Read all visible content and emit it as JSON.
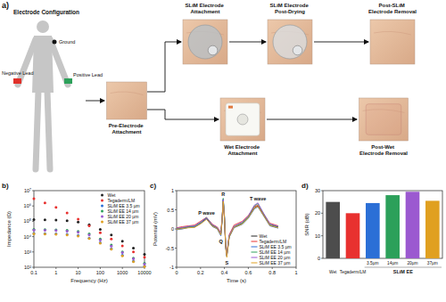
{
  "diagram": {
    "label": "a)",
    "title": "Electrode Configuration",
    "leads": {
      "ground": "Ground",
      "positive": "Positive Lead",
      "negative": "Negative Lead"
    },
    "photos": {
      "pre": "Pre-Electrode Attachment",
      "slim_attach": "SLiM Electrode Attachment",
      "slim_dry": "SLiM Electrode Post-Drying",
      "slim_removed": "Post-SLiM Electrode Removal",
      "wet_attach": "Wet Electrode Attachment",
      "wet_removed": "Post-Wet Electrode Removal"
    }
  },
  "chart_data": [
    {
      "type": "scatter",
      "title": "b)",
      "x_label": "Frequency (Hz)",
      "y_label": "Impedance (Ω)",
      "log": true,
      "marker": "circle",
      "legend": "upper right",
      "x": [
        0.1,
        0.316,
        1,
        3.16,
        10,
        31.6,
        100,
        316,
        1000,
        3160,
        10000
      ],
      "xlim": [
        0.1,
        10000
      ],
      "xticks": [
        0.1,
        1,
        10,
        100,
        1000,
        10000
      ],
      "ylim": [
        100,
        10000000
      ],
      "yticks": [
        {
          "value": 100,
          "label": "10²"
        },
        {
          "value": 1000,
          "label": "10³"
        },
        {
          "value": 10000,
          "label": "10⁴"
        },
        {
          "value": 100000,
          "label": "10⁵"
        },
        {
          "value": 1000000,
          "label": "10⁶"
        },
        {
          "value": 10000000,
          "label": "10⁷"
        }
      ],
      "series": [
        {
          "name": "Wet",
          "color": "#222222",
          "values": [
            130000,
            125000,
            120000,
            110000,
            90000,
            60000,
            30000,
            13000,
            5000,
            1800,
            700
          ]
        },
        {
          "name": "Tegaderm/LM",
          "color": "#e8312f",
          "values": [
            3000000,
            1600000,
            800000,
            350000,
            140000,
            50000,
            18000,
            7000,
            2500,
            1000,
            450
          ]
        },
        {
          "name": "SLiM EE 3.5 µm",
          "color": "#2b6fd6",
          "values": [
            16000,
            15500,
            15000,
            14000,
            12000,
            8000,
            4000,
            1600,
            600,
            250,
            120
          ]
        },
        {
          "name": "SLiM EE 14 µm",
          "color": "#2ca05a",
          "values": [
            30000,
            29000,
            28000,
            26000,
            22000,
            15000,
            7000,
            2800,
            1000,
            400,
            180
          ]
        },
        {
          "name": "SLiM EE 20 µm",
          "color": "#9b59d0",
          "values": [
            27000,
            26000,
            25000,
            23000,
            19000,
            13000,
            6000,
            2400,
            900,
            360,
            160
          ]
        },
        {
          "name": "SLiM EE 37 µm",
          "color": "#e0a020",
          "values": [
            15000,
            14500,
            14000,
            13000,
            11000,
            7500,
            3700,
            1500,
            550,
            230,
            110
          ]
        }
      ]
    },
    {
      "type": "line",
      "title": "c)",
      "x_label": "Time (s)",
      "y_label": "Potential (mV)",
      "legend": "lower right",
      "x": [
        0,
        0.05,
        0.1,
        0.15,
        0.2,
        0.25,
        0.3,
        0.34,
        0.37,
        0.38,
        0.39,
        0.4,
        0.41,
        0.42,
        0.44,
        0.48,
        0.55,
        0.6,
        0.65,
        0.68,
        0.72,
        0.78,
        0.85
      ],
      "xlim": [
        0,
        1
      ],
      "xticks": [
        0,
        0.2,
        0.4,
        0.6,
        0.8,
        1
      ],
      "ylim": [
        -1,
        1
      ],
      "yticks": [
        -1,
        -0.5,
        0,
        0.5,
        1
      ],
      "annotations": [
        {
          "text": "P wave",
          "x": 0.25,
          "y": 0.3
        },
        {
          "text": "R",
          "x": 0.39,
          "y": 0.8
        },
        {
          "text": "Q",
          "x": 0.37,
          "y": -0.18
        },
        {
          "text": "S",
          "x": 0.42,
          "y": -0.74
        },
        {
          "text": "T wave",
          "x": 0.68,
          "y": 0.68
        }
      ],
      "series": [
        {
          "name": "Wet",
          "color": "#222222",
          "values": [
            0,
            0.02,
            0.05,
            0.05,
            0.15,
            0.28,
            0.08,
            0.02,
            -0.15,
            0.2,
            0.75,
            0.3,
            -0.45,
            -0.7,
            -0.2,
            0.05,
            0.15,
            0.3,
            0.55,
            0.6,
            0.4,
            0.1,
            0.05
          ]
        },
        {
          "name": "Tegaderm/LM",
          "color": "#e8312f",
          "values": [
            0.03,
            0.06,
            0.08,
            0.1,
            0.2,
            0.3,
            0.12,
            0.05,
            -0.1,
            0.25,
            0.7,
            0.28,
            -0.4,
            -0.65,
            -0.15,
            0.1,
            0.2,
            0.35,
            0.58,
            0.62,
            0.42,
            0.15,
            0.08
          ]
        },
        {
          "name": "SLiM EE 3.5 µm",
          "color": "#2b6fd6",
          "values": [
            -0.02,
            0,
            0.04,
            0.06,
            0.14,
            0.26,
            0.06,
            0,
            -0.18,
            0.18,
            0.78,
            0.32,
            -0.48,
            -0.72,
            -0.22,
            0.03,
            0.12,
            0.28,
            0.52,
            0.58,
            0.38,
            0.08,
            0.02
          ]
        },
        {
          "name": "SLiM EE 14 µm",
          "color": "#2ca05a",
          "values": [
            0.01,
            0.03,
            0.06,
            0.07,
            0.17,
            0.3,
            0.1,
            0.03,
            -0.13,
            0.22,
            0.8,
            0.35,
            -0.42,
            -0.68,
            -0.18,
            0.06,
            0.16,
            0.32,
            0.6,
            0.66,
            0.44,
            0.12,
            0.06
          ]
        },
        {
          "name": "SLiM EE 20 µm",
          "color": "#9b59d0",
          "values": [
            0.02,
            0.04,
            0.07,
            0.08,
            0.18,
            0.29,
            0.11,
            0.04,
            -0.12,
            0.24,
            0.77,
            0.33,
            -0.44,
            -0.69,
            -0.17,
            0.07,
            0.18,
            0.34,
            0.62,
            0.68,
            0.45,
            0.13,
            0.07
          ]
        },
        {
          "name": "SLiM EE 37 µm",
          "color": "#e0a020",
          "values": [
            -0.01,
            0.01,
            0.03,
            0.04,
            0.13,
            0.25,
            0.07,
            0.01,
            -0.16,
            0.19,
            0.72,
            0.29,
            -0.46,
            -0.74,
            -0.21,
            0.04,
            0.13,
            0.29,
            0.54,
            0.59,
            0.39,
            0.09,
            0.03
          ]
        }
      ]
    },
    {
      "type": "bar",
      "title": "d)",
      "y_label": "SNR (dB)",
      "categories": [
        "Wet",
        "Tegaderm/LM",
        "3.5µm",
        "14µm",
        "20µm",
        "37µm"
      ],
      "values": [
        25,
        20,
        24.5,
        28,
        29.5,
        25.5
      ],
      "colors": [
        "#4d4d4d",
        "#e8312f",
        "#2b6fd6",
        "#2ca05a",
        "#9b59d0",
        "#e0a020"
      ],
      "ylim": [
        0,
        30
      ],
      "yticks": [
        0,
        10,
        20,
        30
      ],
      "annotations": [
        {
          "text": "SLiM EE",
          "from": 2,
          "to": 5
        }
      ]
    }
  ]
}
